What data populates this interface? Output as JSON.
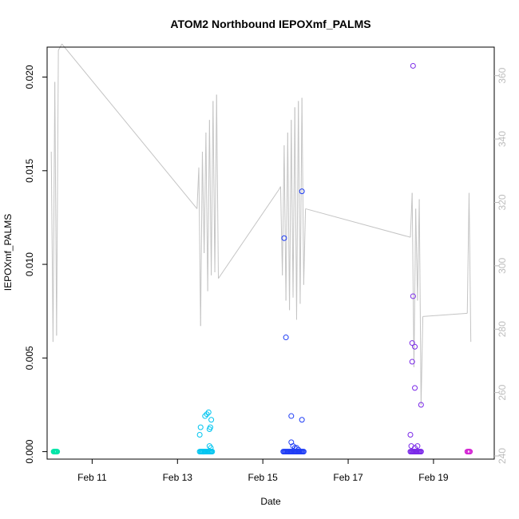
{
  "chart_data": {
    "type": "scatter",
    "title": "ATOM2 Northbound IEPOXmf_PALMS",
    "xlabel": "Date",
    "ylabel": "IEPOXmf_PALMS",
    "x_unit": "date",
    "x_ticks": [
      "Feb 11",
      "Feb 13",
      "Feb 15",
      "Feb 17",
      "Feb 19"
    ],
    "x_tick_values": [
      "2018-02-11",
      "2018-02-13",
      "2018-02-15",
      "2018-02-17",
      "2018-02-19"
    ],
    "xlim": [
      "2018-02-09 22:40",
      "2018-02-20 10:10"
    ],
    "ylim": [
      -0.0004,
      0.0216
    ],
    "y_ticks": [
      "0.000",
      "0.005",
      "0.010",
      "0.015",
      "0.020"
    ],
    "y_tick_values": [
      0,
      0.005,
      0.01,
      0.015,
      0.02
    ],
    "y2lim": [
      239,
      369
    ],
    "y2_ticks": [
      "240",
      "260",
      "280",
      "300",
      "320",
      "340",
      "360"
    ],
    "y2_tick_values": [
      240,
      260,
      280,
      300,
      320,
      340,
      360
    ],
    "series": [
      {
        "color": "#00e5a8",
        "points": [
          [
            "2018-02-10 02:20",
            0
          ],
          [
            "2018-02-10 02:40",
            0
          ],
          [
            "2018-02-10 03:00",
            0
          ],
          [
            "2018-02-10 03:20",
            0
          ],
          [
            "2018-02-10 03:40",
            0
          ],
          [
            "2018-02-10 04:00",
            0
          ],
          [
            "2018-02-10 04:20",
            0
          ]
        ]
      },
      {
        "color": "#00c5f0",
        "points": [
          [
            "2018-02-13 12:30",
            0.0009
          ],
          [
            "2018-02-13 13:00",
            0.0013
          ],
          [
            "2018-02-13 15:30",
            0.0019
          ],
          [
            "2018-02-13 16:30",
            0.002
          ],
          [
            "2018-02-13 17:30",
            0.0021
          ],
          [
            "2018-02-13 18:00",
            0.0012
          ],
          [
            "2018-02-13 18:30",
            0.0013
          ],
          [
            "2018-02-13 19:00",
            0.0017
          ],
          [
            "2018-02-13 18:00",
            0.0003
          ],
          [
            "2018-02-13 18:45",
            0.0002
          ],
          [
            "2018-02-13 12:30",
            0
          ],
          [
            "2018-02-13 13:00",
            0
          ],
          [
            "2018-02-13 13:30",
            0
          ],
          [
            "2018-02-13 14:00",
            0
          ],
          [
            "2018-02-13 14:30",
            0
          ],
          [
            "2018-02-13 15:00",
            0
          ],
          [
            "2018-02-13 15:30",
            0
          ],
          [
            "2018-02-13 16:00",
            0
          ],
          [
            "2018-02-13 16:30",
            0
          ],
          [
            "2018-02-13 17:00",
            0
          ],
          [
            "2018-02-13 17:30",
            0
          ],
          [
            "2018-02-13 18:00",
            0
          ],
          [
            "2018-02-13 18:30",
            0
          ],
          [
            "2018-02-13 19:00",
            0
          ],
          [
            "2018-02-13 19:30",
            0
          ]
        ]
      },
      {
        "color": "#1f3df5",
        "points": [
          [
            "2018-02-15 12:00",
            0.0114
          ],
          [
            "2018-02-15 13:00",
            0.0061
          ],
          [
            "2018-02-15 16:00",
            0.0019
          ],
          [
            "2018-02-15 16:00",
            0.0005
          ],
          [
            "2018-02-15 17:00",
            0.0003
          ],
          [
            "2018-02-15 18:00",
            0.0002
          ],
          [
            "2018-02-15 20:00",
            0.0001
          ],
          [
            "2018-02-15 19:00",
            0.0002
          ],
          [
            "2018-02-15 22:00",
            0.0139
          ],
          [
            "2018-02-15 22:00",
            0.0017
          ],
          [
            "2018-02-15 11:30",
            0
          ],
          [
            "2018-02-15 12:00",
            0
          ],
          [
            "2018-02-15 12:30",
            0
          ],
          [
            "2018-02-15 13:00",
            0
          ],
          [
            "2018-02-15 13:30",
            0
          ],
          [
            "2018-02-15 14:00",
            0
          ],
          [
            "2018-02-15 14:30",
            0
          ],
          [
            "2018-02-15 15:00",
            0
          ],
          [
            "2018-02-15 15:30",
            0
          ],
          [
            "2018-02-15 16:00",
            0
          ],
          [
            "2018-02-15 16:30",
            0
          ],
          [
            "2018-02-15 17:00",
            0
          ],
          [
            "2018-02-15 17:30",
            0
          ],
          [
            "2018-02-15 18:00",
            0
          ],
          [
            "2018-02-15 18:30",
            0
          ],
          [
            "2018-02-15 19:00",
            0
          ],
          [
            "2018-02-15 19:30",
            0
          ],
          [
            "2018-02-15 20:00",
            0
          ],
          [
            "2018-02-15 20:30",
            0
          ],
          [
            "2018-02-15 21:00",
            0
          ],
          [
            "2018-02-15 21:30",
            0
          ],
          [
            "2018-02-15 22:00",
            0
          ],
          [
            "2018-02-15 22:30",
            0
          ],
          [
            "2018-02-15 23:00",
            0
          ]
        ]
      },
      {
        "color": "#7a28e8",
        "points": [
          [
            "2018-02-18 11:00",
            0.0009
          ],
          [
            "2018-02-18 11:30",
            0.0003
          ],
          [
            "2018-02-18 12:00",
            0.0048
          ],
          [
            "2018-02-18 12:00",
            0.0058
          ],
          [
            "2018-02-18 12:30",
            0.0206
          ],
          [
            "2018-02-18 12:30",
            0.0083
          ],
          [
            "2018-02-18 13:30",
            0.0056
          ],
          [
            "2018-02-18 13:30",
            0.0034
          ],
          [
            "2018-02-18 13:30",
            0.0002
          ],
          [
            "2018-02-18 15:00",
            0.0003
          ],
          [
            "2018-02-18 17:00",
            0.0025
          ],
          [
            "2018-02-18 11:00",
            0
          ],
          [
            "2018-02-18 11:30",
            0
          ],
          [
            "2018-02-18 12:00",
            0
          ],
          [
            "2018-02-18 12:30",
            0
          ],
          [
            "2018-02-18 13:00",
            0
          ],
          [
            "2018-02-18 13:30",
            0
          ],
          [
            "2018-02-18 14:00",
            0
          ],
          [
            "2018-02-18 14:30",
            0
          ],
          [
            "2018-02-18 15:00",
            0
          ],
          [
            "2018-02-18 15:30",
            0
          ],
          [
            "2018-02-18 16:00",
            0
          ],
          [
            "2018-02-18 16:30",
            0
          ],
          [
            "2018-02-18 17:00",
            0
          ]
        ]
      },
      {
        "color": "#d21fd2",
        "points": [
          [
            "2018-02-19 19:00",
            0
          ],
          [
            "2018-02-19 19:30",
            0
          ],
          [
            "2018-02-19 20:00",
            0
          ],
          [
            "2018-02-19 20:30",
            0
          ]
        ]
      }
    ],
    "line_secondary": {
      "color": "#c4c4c4",
      "points": [
        [
          "2018-02-10 01:00",
          336
        ],
        [
          "2018-02-10 02:00",
          276
        ],
        [
          "2018-02-10 03:00",
          358
        ],
        [
          "2018-02-10 04:00",
          278
        ],
        [
          "2018-02-10 05:00",
          368
        ],
        [
          "2018-02-10 07:00",
          370
        ],
        [
          "2018-02-13 11:00",
          318
        ],
        [
          "2018-02-13 12:00",
          331
        ],
        [
          "2018-02-13 13:00",
          281
        ],
        [
          "2018-02-13 14:00",
          336
        ],
        [
          "2018-02-13 15:00",
          304
        ],
        [
          "2018-02-13 16:00",
          342
        ],
        [
          "2018-02-13 17:00",
          292
        ],
        [
          "2018-02-13 18:00",
          346
        ],
        [
          "2018-02-13 19:00",
          297
        ],
        [
          "2018-02-13 20:00",
          352
        ],
        [
          "2018-02-13 21:00",
          298
        ],
        [
          "2018-02-13 22:00",
          354
        ],
        [
          "2018-02-13 23:00",
          296
        ],
        [
          "2018-02-15 09:00",
          324
        ],
        [
          "2018-02-15 10:00",
          325
        ],
        [
          "2018-02-15 11:00",
          297
        ],
        [
          "2018-02-15 12:00",
          338
        ],
        [
          "2018-02-15 13:00",
          289
        ],
        [
          "2018-02-15 14:00",
          342
        ],
        [
          "2018-02-15 15:00",
          286
        ],
        [
          "2018-02-15 16:00",
          346
        ],
        [
          "2018-02-15 17:00",
          290
        ],
        [
          "2018-02-15 18:00",
          350
        ],
        [
          "2018-02-15 19:00",
          283
        ],
        [
          "2018-02-15 20:00",
          352
        ],
        [
          "2018-02-15 21:00",
          288
        ],
        [
          "2018-02-15 22:00",
          353
        ],
        [
          "2018-02-15 23:00",
          294
        ],
        [
          "2018-02-16 00:00",
          318
        ],
        [
          "2018-02-18 11:00",
          309
        ],
        [
          "2018-02-18 12:00",
          323
        ],
        [
          "2018-02-18 13:00",
          268
        ],
        [
          "2018-02-18 14:00",
          318
        ],
        [
          "2018-02-18 15:00",
          289
        ],
        [
          "2018-02-18 16:00",
          321
        ],
        [
          "2018-02-18 17:00",
          256
        ],
        [
          "2018-02-18 18:00",
          284
        ],
        [
          "2018-02-19 19:00",
          285
        ],
        [
          "2018-02-19 20:00",
          323
        ],
        [
          "2018-02-19 21:00",
          276
        ]
      ]
    },
    "grid": false,
    "legend": "none"
  }
}
